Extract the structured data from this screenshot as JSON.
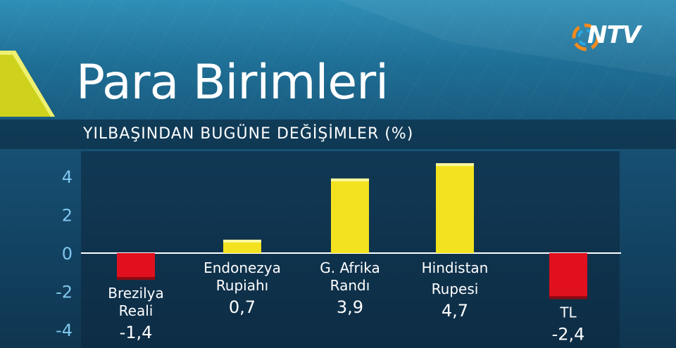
{
  "brand": {
    "logo_text": "NTV"
  },
  "colors": {
    "positive": "#f3e21f",
    "negative": "#e0101e",
    "tick": "#7fc6ee"
  },
  "chart_data": {
    "type": "bar",
    "title": "Para Birimleri",
    "subtitle": "YILBAŞINDAN BUGÜNE DEĞİŞİMLER (%)",
    "ylim": [
      -4,
      5
    ],
    "yticks": [
      4,
      2,
      0,
      -2,
      -4
    ],
    "categories": [
      {
        "lines": [
          "Brezilya",
          "Reali"
        ],
        "value": -1.4,
        "label": "-1,4"
      },
      {
        "lines": [
          "Endonezya",
          "Rupiahı"
        ],
        "value": 0.7,
        "label": "0,7"
      },
      {
        "lines": [
          "G. Afrika",
          "Randı"
        ],
        "value": 3.9,
        "label": "3,9"
      },
      {
        "lines": [
          "Hindistan",
          "Rupesi"
        ],
        "value": 4.7,
        "label": "4,7"
      },
      {
        "lines": [
          "TL"
        ],
        "value": -2.4,
        "label": "-2,4"
      }
    ],
    "grid": false,
    "legend": "none"
  }
}
